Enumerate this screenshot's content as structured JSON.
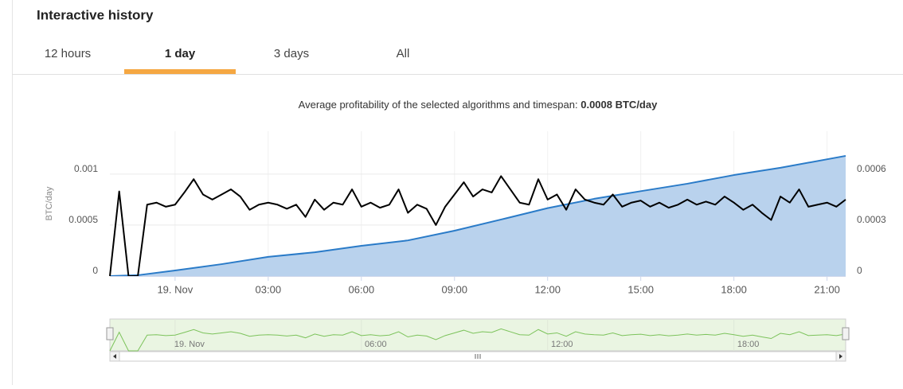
{
  "header": {
    "title": "Interactive history"
  },
  "tabs": {
    "items": [
      "12 hours",
      "1 day",
      "3 days",
      "All"
    ],
    "active": 1
  },
  "chart_data": {
    "type": "line",
    "subtitle": "Average profitability of the selected algorithms and timespan: ",
    "subtitle_value": "0.0008 BTC/day",
    "y_label": "BTC/day",
    "xlim": [
      -2.1,
      21.6
    ],
    "xticks": [
      {
        "value": 0,
        "label": "19. Nov"
      },
      {
        "value": 3,
        "label": "03:00"
      },
      {
        "value": 6,
        "label": "06:00"
      },
      {
        "value": 9,
        "label": "09:00"
      },
      {
        "value": 12,
        "label": "12:00"
      },
      {
        "value": 15,
        "label": "15:00"
      },
      {
        "value": 18,
        "label": "18:00"
      },
      {
        "value": 21,
        "label": "21:00"
      }
    ],
    "ylim": [
      0,
      0.00142
    ],
    "yticks": [
      0,
      0.0005,
      0.001
    ],
    "y2lim": [
      0,
      0.000853
    ],
    "y2ticks": [
      0,
      0.0003,
      0.0006
    ],
    "grid": true,
    "navigator_xticks": [
      {
        "value": 0,
        "label": "19. Nov"
      },
      {
        "value": 6,
        "label": "06:00"
      },
      {
        "value": 12,
        "label": "12:00"
      },
      {
        "value": 18,
        "label": "18:00"
      }
    ],
    "navigator_color": "#7cc35b",
    "series": [
      {
        "color": "#000000",
        "x": [
          -2.1,
          -1.8,
          -1.5,
          -1.2,
          -0.9,
          -0.6,
          -0.3,
          0,
          0.3,
          0.6,
          0.9,
          1.2,
          1.5,
          1.8,
          2.1,
          2.4,
          2.7,
          3.0,
          3.3,
          3.6,
          3.9,
          4.2,
          4.5,
          4.8,
          5.1,
          5.4,
          5.7,
          6.0,
          6.3,
          6.6,
          6.9,
          7.2,
          7.5,
          7.8,
          8.1,
          8.4,
          8.7,
          9.0,
          9.3,
          9.6,
          9.9,
          10.2,
          10.5,
          10.8,
          11.1,
          11.4,
          11.7,
          12.0,
          12.3,
          12.6,
          12.9,
          13.2,
          13.5,
          13.8,
          14.1,
          14.4,
          14.7,
          15.0,
          15.3,
          15.6,
          15.9,
          16.2,
          16.5,
          16.8,
          17.1,
          17.4,
          17.7,
          18.0,
          18.3,
          18.6,
          18.9,
          19.2,
          19.5,
          19.8,
          20.1,
          20.4,
          20.7,
          21.0,
          21.3,
          21.6
        ],
        "values": [
          0,
          0.00083,
          0,
          0,
          0.0007,
          0.00072,
          0.00068,
          0.0007,
          0.00082,
          0.00095,
          0.0008,
          0.00075,
          0.0008,
          0.00085,
          0.00078,
          0.00065,
          0.0007,
          0.00072,
          0.0007,
          0.00066,
          0.0007,
          0.00058,
          0.00075,
          0.00065,
          0.00072,
          0.0007,
          0.00085,
          0.00068,
          0.00072,
          0.00067,
          0.0007,
          0.00085,
          0.00062,
          0.0007,
          0.00066,
          0.0005,
          0.00068,
          0.0008,
          0.00092,
          0.00078,
          0.00085,
          0.00082,
          0.00098,
          0.00085,
          0.00072,
          0.0007,
          0.00095,
          0.00075,
          0.0008,
          0.00065,
          0.00085,
          0.00075,
          0.00072,
          0.0007,
          0.0008,
          0.00068,
          0.00072,
          0.00074,
          0.00068,
          0.00072,
          0.00067,
          0.0007,
          0.00075,
          0.0007,
          0.00073,
          0.0007,
          0.00078,
          0.00072,
          0.00065,
          0.0007,
          0.00062,
          0.00055,
          0.00078,
          0.00072,
          0.00085,
          0.00068,
          0.0007,
          0.00072,
          0.00068,
          0.00075
        ]
      },
      {
        "color": "#2a7bc8",
        "fill": "#b9d2ed",
        "axis": "y2",
        "x": [
          -2.1,
          -1.2,
          0,
          1.5,
          3,
          4.5,
          6,
          7.5,
          9,
          10.5,
          12,
          13.5,
          15,
          16.5,
          18,
          19.5,
          21.6
        ],
        "values": [
          0,
          5e-06,
          3.3e-05,
          7e-05,
          0.000113,
          0.00014,
          0.000178,
          0.00021,
          0.000267,
          0.000333,
          0.0004,
          0.000455,
          0.0005,
          0.000544,
          0.000595,
          0.000638,
          0.000708
        ]
      }
    ]
  }
}
